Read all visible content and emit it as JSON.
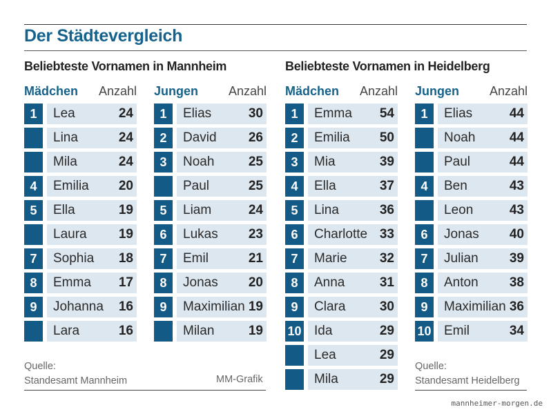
{
  "title": "Der Städtevergleich",
  "sections": [
    {
      "title": "Beliebteste Vornamen in Mannheim"
    },
    {
      "title": "Beliebteste Vornamen in Heidelberg"
    }
  ],
  "count_label": "Anzahl",
  "chart_data": [
    {
      "type": "table",
      "city": "Mannheim",
      "group": "Mädchen",
      "rows": [
        {
          "rank": "1",
          "name": "Lea",
          "value": 24
        },
        {
          "rank": "",
          "name": "Lina",
          "value": 24
        },
        {
          "rank": "",
          "name": "Mila",
          "value": 24
        },
        {
          "rank": "4",
          "name": "Emilia",
          "value": 20
        },
        {
          "rank": "5",
          "name": "Ella",
          "value": 19
        },
        {
          "rank": "",
          "name": "Laura",
          "value": 19
        },
        {
          "rank": "7",
          "name": "Sophia",
          "value": 18
        },
        {
          "rank": "8",
          "name": "Emma",
          "value": 17
        },
        {
          "rank": "9",
          "name": "Johanna",
          "value": 16
        },
        {
          "rank": "",
          "name": "Lara",
          "value": 16
        }
      ]
    },
    {
      "type": "table",
      "city": "Mannheim",
      "group": "Jungen",
      "rows": [
        {
          "rank": "1",
          "name": "Elias",
          "value": 30
        },
        {
          "rank": "2",
          "name": "David",
          "value": 26
        },
        {
          "rank": "3",
          "name": "Noah",
          "value": 25
        },
        {
          "rank": "",
          "name": "Paul",
          "value": 25
        },
        {
          "rank": "5",
          "name": "Liam",
          "value": 24
        },
        {
          "rank": "6",
          "name": "Lukas",
          "value": 23
        },
        {
          "rank": "7",
          "name": "Emil",
          "value": 21
        },
        {
          "rank": "8",
          "name": "Jonas",
          "value": 20
        },
        {
          "rank": "9",
          "name": "Maximilian",
          "value": 19
        },
        {
          "rank": "",
          "name": "Milan",
          "value": 19
        }
      ]
    },
    {
      "type": "table",
      "city": "Heidelberg",
      "group": "Mädchen",
      "rows": [
        {
          "rank": "1",
          "name": "Emma",
          "value": 54
        },
        {
          "rank": "2",
          "name": "Emilia",
          "value": 50
        },
        {
          "rank": "3",
          "name": "Mia",
          "value": 39
        },
        {
          "rank": "4",
          "name": "Ella",
          "value": 37
        },
        {
          "rank": "5",
          "name": "Lina",
          "value": 36
        },
        {
          "rank": "6",
          "name": "Charlotte",
          "value": 33
        },
        {
          "rank": "7",
          "name": "Marie",
          "value": 32
        },
        {
          "rank": "8",
          "name": "Anna",
          "value": 31
        },
        {
          "rank": "9",
          "name": "Clara",
          "value": 30
        },
        {
          "rank": "10",
          "name": "Ida",
          "value": 29
        },
        {
          "rank": "",
          "name": "Lea",
          "value": 29
        },
        {
          "rank": "",
          "name": "Mila",
          "value": 29
        }
      ]
    },
    {
      "type": "table",
      "city": "Heidelberg",
      "group": "Jungen",
      "rows": [
        {
          "rank": "1",
          "name": "Elias",
          "value": 44
        },
        {
          "rank": "",
          "name": "Noah",
          "value": 44
        },
        {
          "rank": "",
          "name": "Paul",
          "value": 44
        },
        {
          "rank": "4",
          "name": "Ben",
          "value": 43
        },
        {
          "rank": "",
          "name": "Leon",
          "value": 43
        },
        {
          "rank": "6",
          "name": "Jonas",
          "value": 40
        },
        {
          "rank": "7",
          "name": "Julian",
          "value": 39
        },
        {
          "rank": "8",
          "name": "Anton",
          "value": 38
        },
        {
          "rank": "9",
          "name": "Maximilian",
          "value": 36
        },
        {
          "rank": "10",
          "name": "Emil",
          "value": 34
        }
      ]
    }
  ],
  "sources": [
    {
      "label": "Quelle:",
      "text": "Standesamt Mannheim"
    },
    {
      "label": "Quelle:",
      "text": "Standesamt Heidelberg"
    }
  ],
  "credit": "MM-Grafik",
  "watermark": "mannheimer-morgen.de",
  "colors": {
    "accent": "#15628c",
    "rank_fill": "#145a86",
    "row_fill": "#dde7ef"
  }
}
